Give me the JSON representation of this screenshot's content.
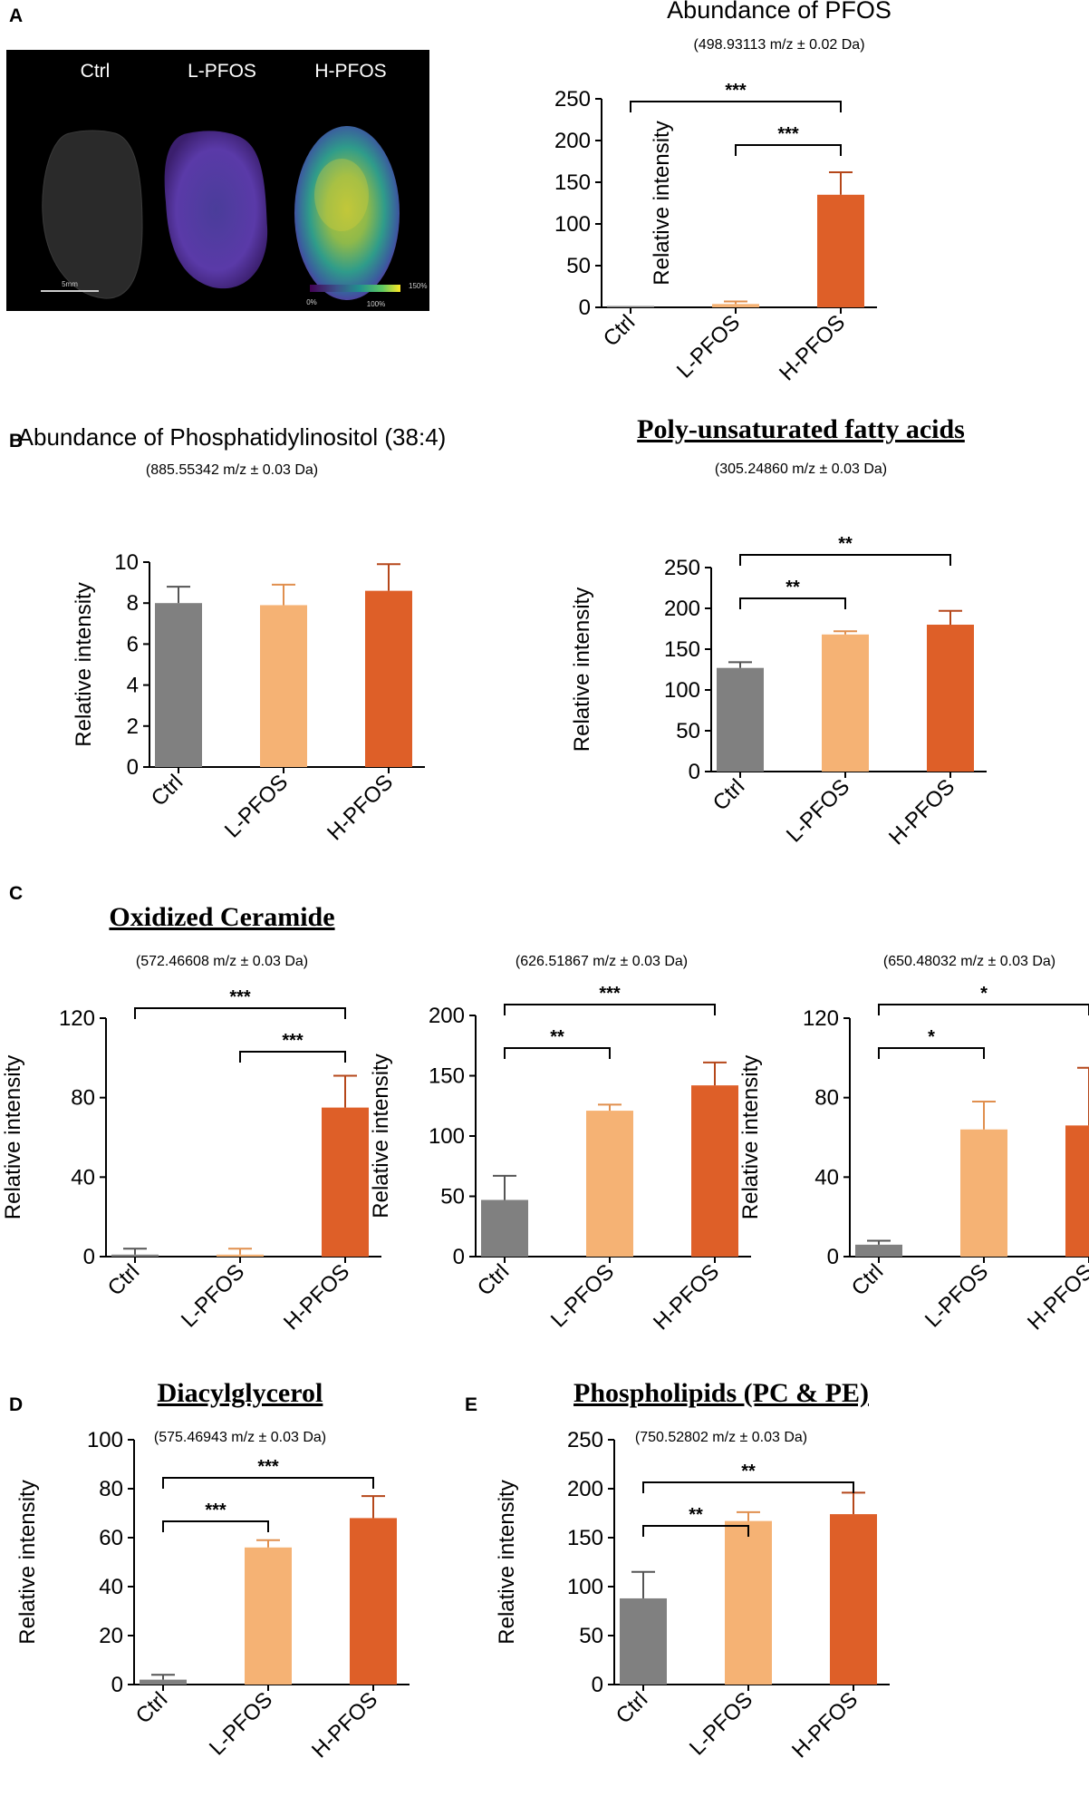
{
  "figure": {
    "panel_letters": [
      "A",
      "B",
      "C",
      "D",
      "E"
    ],
    "categories": [
      "Ctrl",
      "L-PFOS",
      "H-PFOS"
    ],
    "colors": {
      "ctrl": "#808080",
      "l_pfos": "#F5B274",
      "h_pfos": "#DE5F28",
      "error_bar_dark": "#555555",
      "error_bar_light": "#E08F4E",
      "error_bar_h": "#B5471A"
    }
  },
  "imaging": {
    "labels": [
      "Ctrl",
      "L-PFOS",
      "H-PFOS"
    ],
    "scale_bar_label": "5mm",
    "colorbar_labels": [
      "0%",
      "100%",
      "150%"
    ]
  },
  "chart_data": [
    {
      "id": "A",
      "type": "bar",
      "title": "Abundance of PFOS",
      "title_style": "plain",
      "subtitle": "(498.93113 m/z ± 0.02 Da)",
      "ylabel": "Relative intensity",
      "xlabel": "",
      "categories": [
        "Ctrl",
        "L-PFOS",
        "H-PFOS"
      ],
      "values": [
        1,
        4,
        135
      ],
      "errors": [
        0,
        3,
        27
      ],
      "ylim": [
        0,
        250
      ],
      "yticks": [
        "0",
        "50",
        "100",
        "150",
        "200",
        "250"
      ],
      "significance": [
        {
          "from": 0,
          "to": 2,
          "label": "***"
        },
        {
          "from": 1,
          "to": 2,
          "label": "***"
        }
      ]
    },
    {
      "id": "B1",
      "type": "bar",
      "title": "Abundance of Phosphatidylinositol (38:4)",
      "title_style": "plain",
      "subtitle": "(885.55342 m/z ± 0.03 Da)",
      "ylabel": "Relative intensity",
      "xlabel": "",
      "categories": [
        "Ctrl",
        "L-PFOS",
        "H-PFOS"
      ],
      "values": [
        8.0,
        7.9,
        8.6
      ],
      "errors": [
        0.8,
        1.0,
        1.3
      ],
      "ylim": [
        0,
        10
      ],
      "yticks": [
        "0",
        "2",
        "4",
        "6",
        "8",
        "10"
      ],
      "significance": []
    },
    {
      "id": "B2",
      "type": "bar",
      "title": "Poly-unsaturated fatty acids",
      "title_style": "serif-underline",
      "subtitle": "(305.24860 m/z ± 0.03 Da)",
      "ylabel": "Relative intensity",
      "xlabel": "",
      "categories": [
        "Ctrl",
        "L-PFOS",
        "H-PFOS"
      ],
      "values": [
        127,
        168,
        180
      ],
      "errors": [
        7,
        4,
        17
      ],
      "ylim": [
        0,
        250
      ],
      "yticks": [
        "0",
        "50",
        "100",
        "150",
        "200",
        "250"
      ],
      "significance": [
        {
          "from": 0,
          "to": 1,
          "label": "**"
        },
        {
          "from": 0,
          "to": 2,
          "label": "**"
        }
      ]
    },
    {
      "id": "C1",
      "type": "bar",
      "title": "Oxidized Ceramide",
      "title_style": "serif-underline",
      "subtitle": "(572.46608 m/z ± 0.03 Da)",
      "ylabel": "Relative intensity",
      "xlabel": "",
      "categories": [
        "Ctrl",
        "L-PFOS",
        "H-PFOS"
      ],
      "values": [
        1,
        1,
        75
      ],
      "errors": [
        3,
        3,
        16
      ],
      "ylim": [
        0,
        120
      ],
      "yticks": [
        "0",
        "40",
        "80",
        "120"
      ],
      "significance": [
        {
          "from": 0,
          "to": 2,
          "label": "***"
        },
        {
          "from": 1,
          "to": 2,
          "label": "***"
        }
      ]
    },
    {
      "id": "C2",
      "type": "bar",
      "title": "",
      "title_style": "plain",
      "subtitle": "(626.51867 m/z ± 0.03 Da)",
      "ylabel": "Relative intensity",
      "xlabel": "",
      "categories": [
        "Ctrl",
        "L-PFOS",
        "H-PFOS"
      ],
      "values": [
        47,
        121,
        142
      ],
      "errors": [
        20,
        5,
        19
      ],
      "ylim": [
        0,
        200
      ],
      "yticks": [
        "0",
        "50",
        "100",
        "150",
        "200"
      ],
      "significance": [
        {
          "from": 0,
          "to": 1,
          "label": "**"
        },
        {
          "from": 0,
          "to": 2,
          "label": "***"
        }
      ]
    },
    {
      "id": "C3",
      "type": "bar",
      "title": "",
      "title_style": "plain",
      "subtitle": "(650.48032 m/z ± 0.03 Da)",
      "ylabel": "Relative intensity",
      "xlabel": "",
      "categories": [
        "Ctrl",
        "L-PFOS",
        "H-PFOS"
      ],
      "values": [
        6,
        64,
        66
      ],
      "errors": [
        2,
        14,
        29
      ],
      "ylim": [
        0,
        120
      ],
      "yticks": [
        "0",
        "40",
        "80",
        "120"
      ],
      "significance": [
        {
          "from": 0,
          "to": 1,
          "label": "*"
        },
        {
          "from": 0,
          "to": 2,
          "label": "*"
        }
      ]
    },
    {
      "id": "D",
      "type": "bar",
      "title": "Diacylglycerol",
      "title_style": "serif-underline",
      "subtitle": "(575.46943 m/z ± 0.03 Da)",
      "ylabel": "Relative intensity",
      "xlabel": "",
      "categories": [
        "Ctrl",
        "L-PFOS",
        "H-PFOS"
      ],
      "values": [
        2,
        56,
        68
      ],
      "errors": [
        2,
        3,
        9
      ],
      "ylim": [
        0,
        100
      ],
      "yticks": [
        "0",
        "20",
        "40",
        "60",
        "80",
        "100"
      ],
      "significance": [
        {
          "from": 0,
          "to": 1,
          "label": "***"
        },
        {
          "from": 0,
          "to": 2,
          "label": "***"
        }
      ]
    },
    {
      "id": "E",
      "type": "bar",
      "title": "Phospholipids (PC & PE)",
      "title_style": "serif-underline",
      "subtitle": "(750.52802 m/z ± 0.03 Da)",
      "ylabel": "Relative intensity",
      "xlabel": "",
      "categories": [
        "Ctrl",
        "L-PFOS",
        "H-PFOS"
      ],
      "values": [
        88,
        167,
        174
      ],
      "errors": [
        27,
        9,
        22
      ],
      "ylim": [
        0,
        250
      ],
      "yticks": [
        "0",
        "50",
        "100",
        "150",
        "200",
        "250"
      ],
      "significance": [
        {
          "from": 0,
          "to": 1,
          "label": "**"
        },
        {
          "from": 0,
          "to": 2,
          "label": "**"
        }
      ]
    }
  ]
}
